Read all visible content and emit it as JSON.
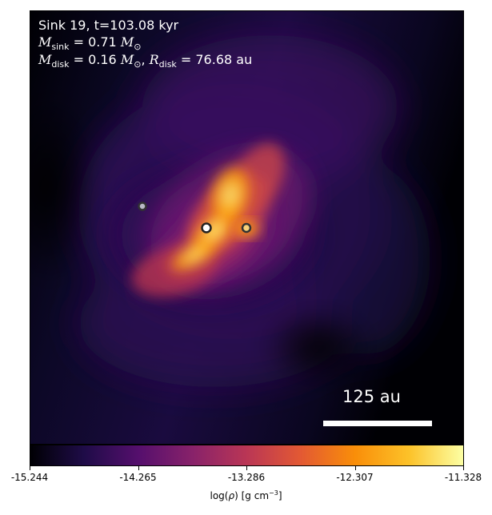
{
  "info": {
    "title": "Sink 19, t=103.08 kyr",
    "msink_value": "0.71",
    "mdisk_value": "0.16",
    "rdisk_value": "76.68",
    "rdisk_unit": "au"
  },
  "scalebar": {
    "label": "125 au"
  },
  "colorbar": {
    "ticks": [
      "-15.244",
      "-14.265",
      "-13.286",
      "-12.307",
      "-11.328"
    ],
    "label_prefix": "log(",
    "label_unit": ") [g cm",
    "label_exp": "−3",
    "label_end": "]",
    "colormap": [
      "#000004",
      "#1f0c48",
      "#550f6d",
      "#88226a",
      "#ba3655",
      "#e35933",
      "#f98e09",
      "#fcc229",
      "#fcffa4"
    ]
  },
  "sinks": [
    {
      "name": "sink-primary",
      "fill": "#ffffff",
      "ring": "#222222"
    },
    {
      "name": "sink-companion-east",
      "fill": "#f7d27a",
      "ring": "#333333"
    },
    {
      "name": "sink-companion-west",
      "fill": "#b9b9c6",
      "ring": "#333333"
    }
  ]
}
